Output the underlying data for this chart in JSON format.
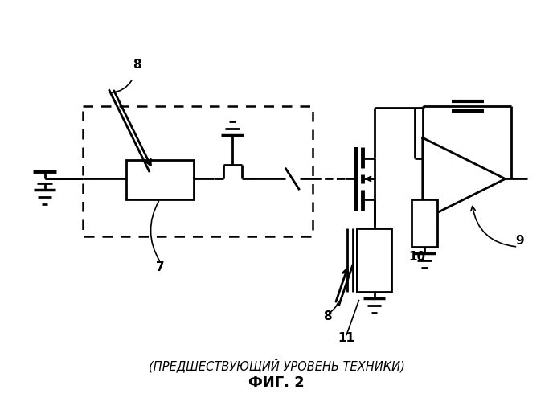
{
  "bg_color": "#ffffff",
  "line_color": "#000000",
  "bottom_text1": "(ПРЕДШЕСТВУЮЩИЙ УРОВЕНЬ ТЕХНИКИ)",
  "bottom_text2": "ФИГ. 2",
  "figsize": [
    6.88,
    5.0
  ],
  "dpi": 100
}
